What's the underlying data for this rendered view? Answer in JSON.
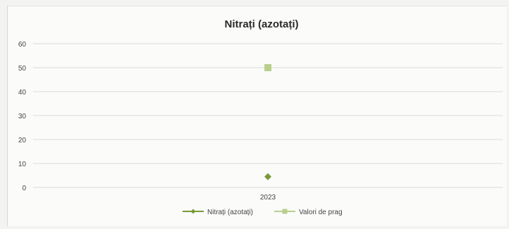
{
  "chart_data": {
    "type": "line",
    "title": "Nitrați (azotați)",
    "categories": [
      "2023"
    ],
    "ylim": [
      0,
      60
    ],
    "yticks": [
      0,
      10,
      20,
      30,
      40,
      50,
      60
    ],
    "grid": true,
    "legend_position": "bottom",
    "series": [
      {
        "name": "Nitrați (azotați)",
        "values": [
          4.5
        ],
        "marker": "diamond",
        "color": "#7a9a3a"
      },
      {
        "name": "Valori de prag",
        "values": [
          50
        ],
        "marker": "square",
        "color": "#b8cf8c"
      }
    ]
  }
}
